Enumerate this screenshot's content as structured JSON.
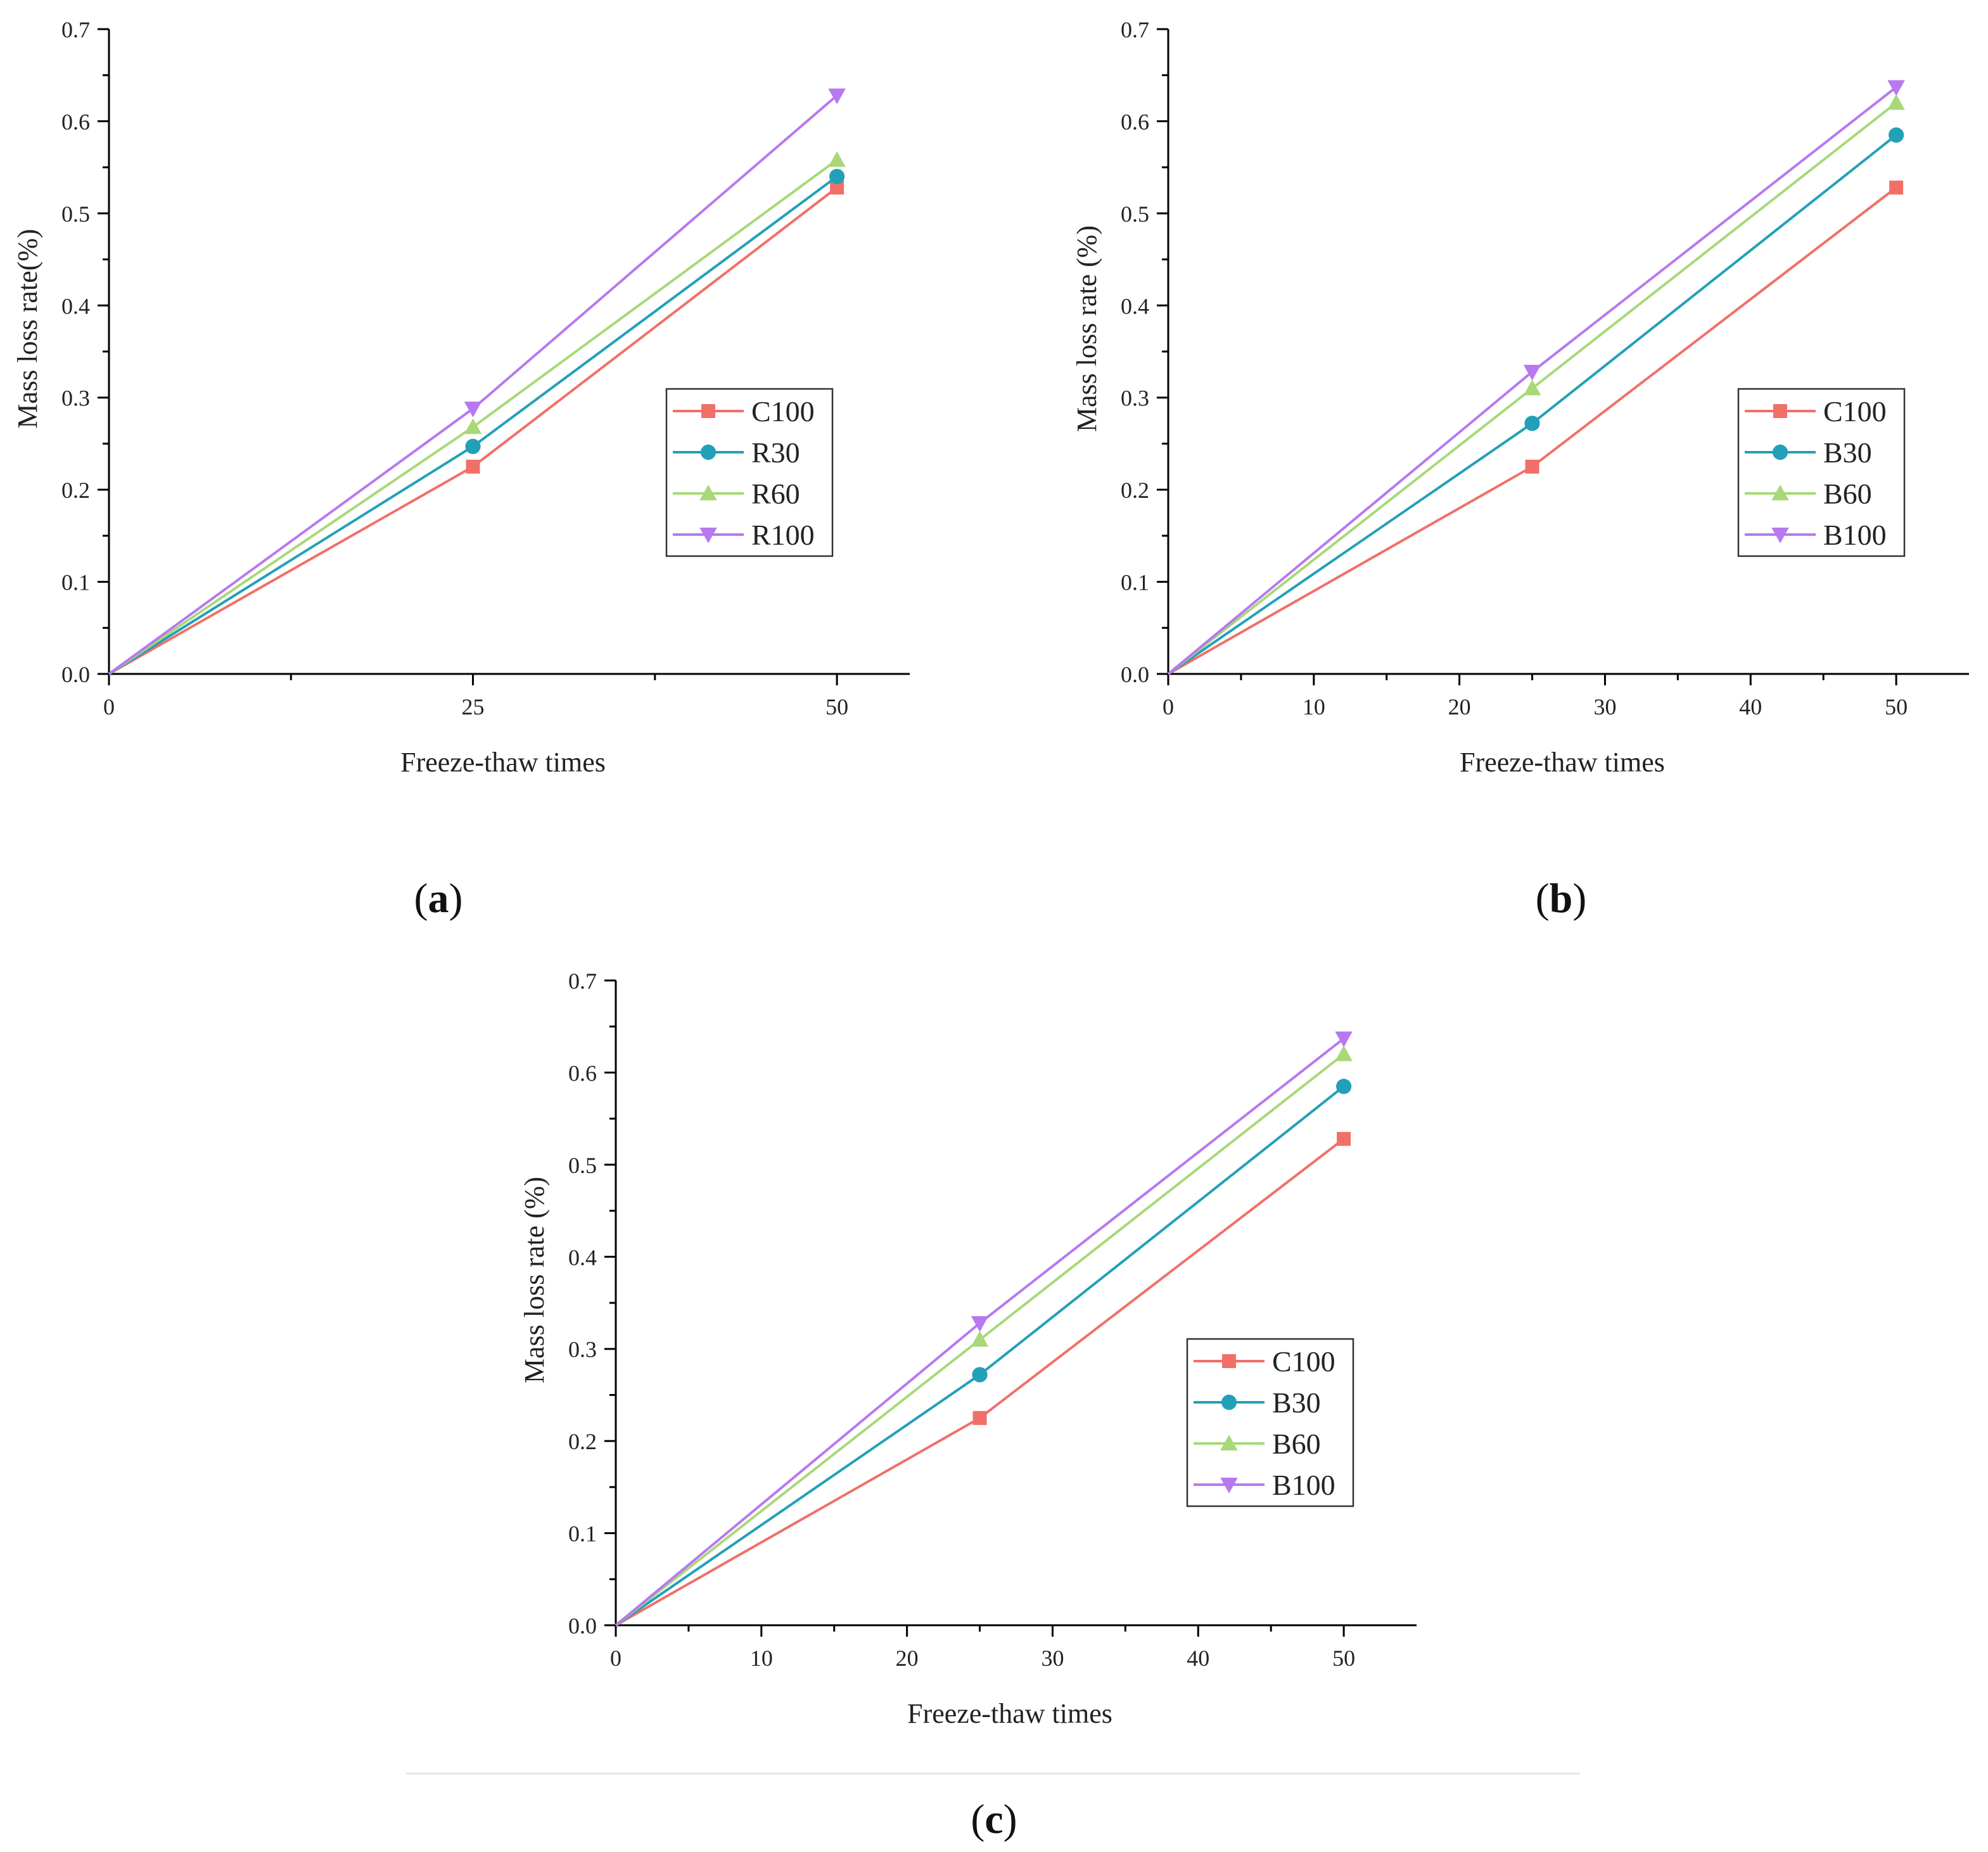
{
  "chart_data": [
    {
      "type": "line",
      "panel_label": {
        "open": "(",
        "letter": "a",
        "close": ")"
      },
      "xlabel": "Freeze-thaw times",
      "ylabel": "Mass loss rate(%)",
      "xlim": [
        0,
        55
      ],
      "ylim": [
        0,
        0.7
      ],
      "xticks": [
        0,
        25,
        50
      ],
      "xtick_labels": [
        "0",
        "25",
        "50"
      ],
      "xminor": [
        12.5,
        37.5
      ],
      "yticks": [
        0,
        0.1,
        0.2,
        0.3,
        0.4,
        0.5,
        0.6,
        0.7
      ],
      "ytick_labels": [
        "0.0",
        "0.1",
        "0.2",
        "0.3",
        "0.4",
        "0.5",
        "0.6",
        "0.7"
      ],
      "grid": false,
      "legend_position": "center-right",
      "series": [
        {
          "name": "C100",
          "color": "#f07068",
          "marker": "square",
          "x": [
            0,
            25,
            50
          ],
          "y": [
            0,
            0.225,
            0.528
          ]
        },
        {
          "name": "R30",
          "color": "#22a0b8",
          "marker": "circle",
          "x": [
            0,
            25,
            50
          ],
          "y": [
            0,
            0.247,
            0.54
          ]
        },
        {
          "name": "R60",
          "color": "#a8d878",
          "marker": "triangle-up",
          "x": [
            0,
            25,
            50
          ],
          "y": [
            0,
            0.268,
            0.558
          ]
        },
        {
          "name": "R100",
          "color": "#b878f0",
          "marker": "triangle-down",
          "x": [
            0,
            25,
            50
          ],
          "y": [
            0,
            0.288,
            0.628
          ]
        }
      ]
    },
    {
      "type": "line",
      "panel_label": {
        "open": "(",
        "letter": "b",
        "close": ")"
      },
      "xlabel": "Freeze-thaw times",
      "ylabel": "Mass loss rate (%)",
      "xlim": [
        0,
        55
      ],
      "ylim": [
        0,
        0.7
      ],
      "xticks": [
        0,
        10,
        20,
        30,
        40,
        50
      ],
      "xtick_labels": [
        "0",
        "10",
        "20",
        "30",
        "40",
        "50"
      ],
      "xminor": [
        5,
        15,
        25,
        35,
        45
      ],
      "yticks": [
        0,
        0.1,
        0.2,
        0.3,
        0.4,
        0.5,
        0.6,
        0.7
      ],
      "ytick_labels": [
        "0.0",
        "0.1",
        "0.2",
        "0.3",
        "0.4",
        "0.5",
        "0.6",
        "0.7"
      ],
      "grid": false,
      "legend_position": "center-right",
      "series": [
        {
          "name": "C100",
          "color": "#f07068",
          "marker": "square",
          "x": [
            0,
            25,
            50
          ],
          "y": [
            0,
            0.225,
            0.528
          ]
        },
        {
          "name": "B30",
          "color": "#22a0b8",
          "marker": "circle",
          "x": [
            0,
            25,
            50
          ],
          "y": [
            0,
            0.272,
            0.585
          ]
        },
        {
          "name": "B60",
          "color": "#a8d878",
          "marker": "triangle-up",
          "x": [
            0,
            25,
            50
          ],
          "y": [
            0,
            0.31,
            0.62
          ]
        },
        {
          "name": "B100",
          "color": "#b878f0",
          "marker": "triangle-down",
          "x": [
            0,
            25,
            50
          ],
          "y": [
            0,
            0.328,
            0.637
          ]
        }
      ]
    },
    {
      "type": "line",
      "panel_label": {
        "open": "(",
        "letter": "c",
        "close": ")"
      },
      "xlabel": "Freeze-thaw times",
      "ylabel": "Mass loss rate (%)",
      "xlim": [
        0,
        55
      ],
      "ylim": [
        0,
        0.7
      ],
      "xticks": [
        0,
        10,
        20,
        30,
        40,
        50
      ],
      "xtick_labels": [
        "0",
        "10",
        "20",
        "30",
        "40",
        "50"
      ],
      "xminor": [
        5,
        15,
        25,
        35,
        45
      ],
      "yticks": [
        0,
        0.1,
        0.2,
        0.3,
        0.4,
        0.5,
        0.6,
        0.7
      ],
      "ytick_labels": [
        "0.0",
        "0.1",
        "0.2",
        "0.3",
        "0.4",
        "0.5",
        "0.6",
        "0.7"
      ],
      "grid": false,
      "legend_position": "center-right",
      "series": [
        {
          "name": "C100",
          "color": "#f07068",
          "marker": "square",
          "x": [
            0,
            25,
            50
          ],
          "y": [
            0,
            0.225,
            0.528
          ]
        },
        {
          "name": "B30",
          "color": "#22a0b8",
          "marker": "circle",
          "x": [
            0,
            25,
            50
          ],
          "y": [
            0,
            0.272,
            0.585
          ]
        },
        {
          "name": "B60",
          "color": "#a8d878",
          "marker": "triangle-up",
          "x": [
            0,
            25,
            50
          ],
          "y": [
            0,
            0.31,
            0.62
          ]
        },
        {
          "name": "B100",
          "color": "#b878f0",
          "marker": "triangle-down",
          "x": [
            0,
            25,
            50
          ],
          "y": [
            0,
            0.328,
            0.637
          ]
        }
      ]
    }
  ]
}
